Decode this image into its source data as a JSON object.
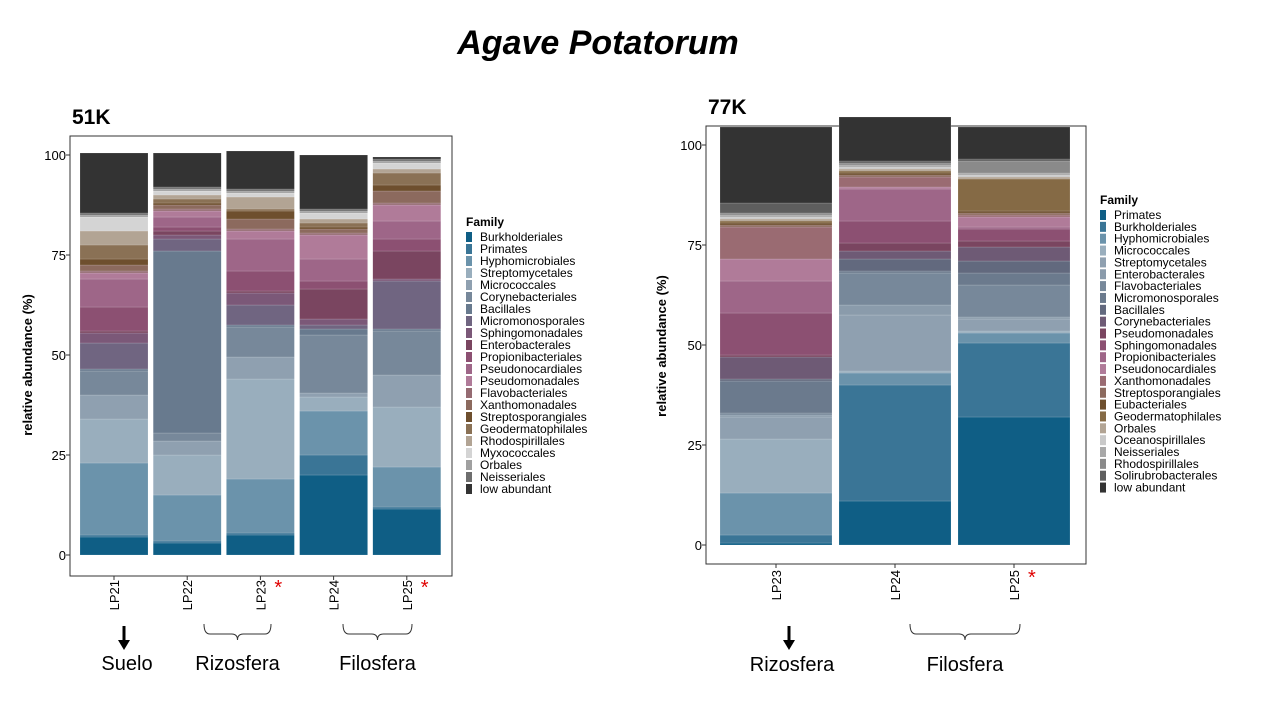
{
  "title": "Agave Potatorum",
  "chart_data": [
    {
      "type": "bar",
      "stacked": true,
      "panel": "51K",
      "ylabel": "relative abundance (%)",
      "ylim": [
        0,
        100
      ],
      "yticks": [
        0,
        25,
        50,
        75,
        100
      ],
      "legend_title": "Family",
      "legend_position": "right",
      "categories": [
        "LP21",
        "LP22",
        "LP23",
        "LP24",
        "LP25"
      ],
      "significant": [
        false,
        false,
        true,
        false,
        true
      ],
      "series": [
        {
          "name": "Burkholderiales",
          "color": "#0f5e85",
          "values": [
            4.5,
            3,
            5,
            20,
            11.5
          ]
        },
        {
          "name": "Primates",
          "color": "#3a7596",
          "values": [
            0.5,
            0.5,
            0.5,
            5,
            0.5
          ]
        },
        {
          "name": "Hyphomicrobiales",
          "color": "#6b93ab",
          "values": [
            18,
            11.5,
            13.5,
            11,
            10
          ]
        },
        {
          "name": "Streptomycetales",
          "color": "#99aebd",
          "values": [
            11,
            10,
            25,
            3.5,
            15
          ]
        },
        {
          "name": "Micrococcales",
          "color": "#8fa0b0",
          "values": [
            6,
            3.5,
            5.5,
            1,
            8
          ]
        },
        {
          "name": "Corynebacteriales",
          "color": "#77889a",
          "values": [
            6,
            2,
            7.5,
            14.5,
            11
          ]
        },
        {
          "name": "Bacillales",
          "color": "#687a8e",
          "values": [
            0.5,
            45.5,
            0.5,
            1.5,
            0.5
          ]
        },
        {
          "name": "Micromonosporales",
          "color": "#706581",
          "values": [
            6.5,
            3,
            5,
            1,
            12
          ]
        },
        {
          "name": "Sphingomonadales",
          "color": "#7b5878",
          "values": [
            2.5,
            1,
            3,
            1.5,
            0.5
          ]
        },
        {
          "name": "Enterobacterales",
          "color": "#7a4560",
          "values": [
            0.5,
            1,
            0.5,
            7.5,
            7
          ]
        },
        {
          "name": "Propionibacteriales",
          "color": "#8c5072",
          "values": [
            6,
            1,
            5,
            2,
            3
          ]
        },
        {
          "name": "Pseudonocardiales",
          "color": "#9e6688",
          "values": [
            7,
            2.5,
            8,
            5.5,
            4.5
          ]
        },
        {
          "name": "Pseudomonadales",
          "color": "#b07b99",
          "values": [
            1.5,
            1.5,
            2,
            6,
            4
          ]
        },
        {
          "name": "Flavobacteriales",
          "color": "#956b72",
          "values": [
            0.5,
            0.5,
            0.5,
            0.5,
            0.5
          ]
        },
        {
          "name": "Xanthomonadales",
          "color": "#8c6a5e",
          "values": [
            1.5,
            1,
            2.5,
            1,
            3
          ]
        },
        {
          "name": "Streptosporangiales",
          "color": "#6e4f2e",
          "values": [
            1.5,
            0.5,
            2,
            0.5,
            1.5
          ]
        },
        {
          "name": "Geodermatophilales",
          "color": "#8a7155",
          "values": [
            3.5,
            1,
            0.5,
            1,
            3
          ]
        },
        {
          "name": "Rhodospirillales",
          "color": "#b2a494",
          "values": [
            3.5,
            1,
            3,
            1,
            1
          ]
        },
        {
          "name": "Myxococcales",
          "color": "#d4d4d4",
          "values": [
            3.5,
            1,
            1,
            1.5,
            1.5
          ]
        },
        {
          "name": "Orbales",
          "color": "#a0a0a0",
          "values": [
            0.5,
            0.5,
            0.5,
            0.5,
            0.5
          ]
        },
        {
          "name": "Neisseriales",
          "color": "#6e6e6e",
          "values": [
            0.5,
            0.5,
            0.5,
            0.5,
            0.5
          ]
        },
        {
          "name": "low abundant",
          "color": "#333333",
          "values": [
            15,
            8.5,
            9.5,
            13.5,
            0.5
          ]
        }
      ]
    },
    {
      "type": "bar",
      "stacked": true,
      "panel": "77K",
      "ylabel": "relative abundance (%)",
      "ylim": [
        0,
        100
      ],
      "yticks": [
        0,
        25,
        50,
        75,
        100
      ],
      "legend_title": "Family",
      "legend_position": "right",
      "categories": [
        "LP23",
        "LP24",
        "LP25"
      ],
      "significant": [
        false,
        false,
        true
      ],
      "series": [
        {
          "name": "Primates",
          "color": "#0f5e85",
          "values": [
            0.5,
            11,
            32
          ]
        },
        {
          "name": "Burkholderiales",
          "color": "#3a7596",
          "values": [
            2,
            29,
            18.5
          ]
        },
        {
          "name": "Hyphomicrobiales",
          "color": "#6b93ab",
          "values": [
            10.5,
            3,
            2.5
          ]
        },
        {
          "name": "Micrococcales",
          "color": "#99aebd",
          "values": [
            13.5,
            0.5,
            0.5
          ]
        },
        {
          "name": "Streptomycetales",
          "color": "#8fa0b0",
          "values": [
            5.5,
            14,
            3
          ]
        },
        {
          "name": "Enterobacterales",
          "color": "#8a9bab",
          "values": [
            0.5,
            2.5,
            0.5
          ]
        },
        {
          "name": "Flavobacteriales",
          "color": "#77889a",
          "values": [
            0.5,
            8,
            8
          ]
        },
        {
          "name": "Micromonosporales",
          "color": "#6b7a8d",
          "values": [
            8,
            0.5,
            3
          ]
        },
        {
          "name": "Bacillales",
          "color": "#62697e",
          "values": [
            0.5,
            3,
            3
          ]
        },
        {
          "name": "Corynebacteriales",
          "color": "#6e5a75",
          "values": [
            5.5,
            2,
            3.5
          ]
        },
        {
          "name": "Pseudomonadales",
          "color": "#7a4560",
          "values": [
            0.5,
            2,
            1.5
          ]
        },
        {
          "name": "Sphingomonadales",
          "color": "#8c5072",
          "values": [
            10.5,
            5.5,
            3
          ]
        },
        {
          "name": "Propionibacteriales",
          "color": "#9e6688",
          "values": [
            8,
            8,
            0.5
          ]
        },
        {
          "name": "Pseudonocardiales",
          "color": "#b07b99",
          "values": [
            5.5,
            0.5,
            2.5
          ]
        },
        {
          "name": "Xanthomonadales",
          "color": "#9a6b72",
          "values": [
            8,
            2.5,
            0.5
          ]
        },
        {
          "name": "Streptosporangiales",
          "color": "#8c6a5e",
          "values": [
            0.5,
            0.5,
            0.5
          ]
        },
        {
          "name": "Eubacteriales",
          "color": "#6e4f2e",
          "values": [
            0.5,
            0.5,
            0.5
          ]
        },
        {
          "name": "Geodermatophilales",
          "color": "#856a45",
          "values": [
            0.5,
            0.5,
            8
          ]
        },
        {
          "name": "Orbales",
          "color": "#b2a494",
          "values": [
            0.5,
            0.5,
            0.5
          ]
        },
        {
          "name": "Oceanospirillales",
          "color": "#c9c9c9",
          "values": [
            0.5,
            0.5,
            0.5
          ]
        },
        {
          "name": "Neisseriales",
          "color": "#a8a8a8",
          "values": [
            0.5,
            0.5,
            0.5
          ]
        },
        {
          "name": "Rhodospirillales",
          "color": "#8a8a8a",
          "values": [
            0.5,
            0.5,
            3
          ]
        },
        {
          "name": "Solirubrobacterales",
          "color": "#5e5e5e",
          "values": [
            2.5,
            0.5,
            0.5
          ]
        },
        {
          "name": "low abundant",
          "color": "#333333",
          "values": [
            19,
            11,
            8
          ]
        }
      ]
    }
  ],
  "groups": [
    {
      "label": "Suelo",
      "arrow": true
    },
    {
      "label": "Rizosfera",
      "arrow": false
    },
    {
      "label": "Filosfera",
      "arrow": false
    },
    {
      "label": "Rizosfera",
      "arrow": true
    },
    {
      "label": "Filosfera",
      "arrow": false
    }
  ],
  "significance_mark": "*"
}
